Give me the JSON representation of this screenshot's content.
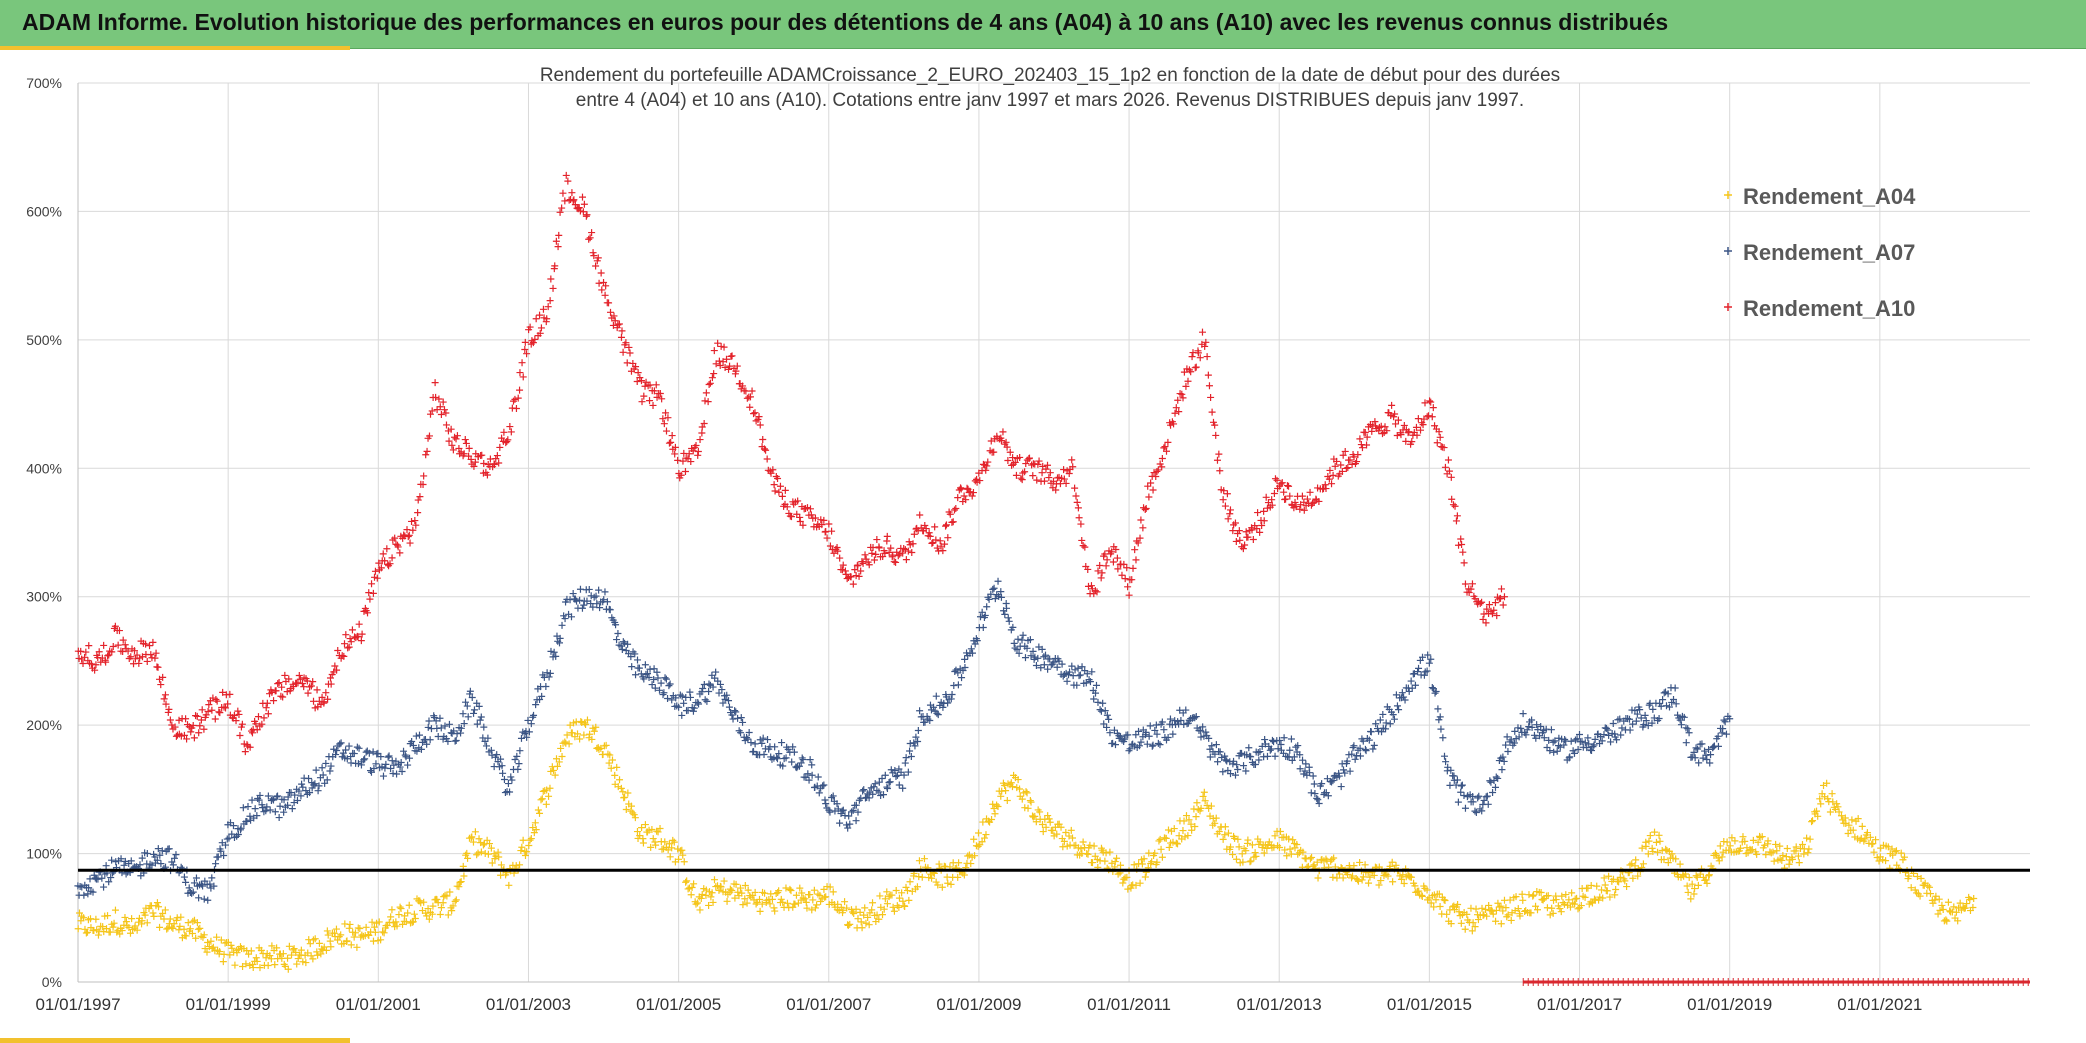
{
  "header": {
    "title": "ADAM Informe. Evolution historique des performances en euros pour des détentions de 4 ans (A04) à 10 ans (A10) avec les revenus connus distribués"
  },
  "colors": {
    "banner": "#79c67c",
    "accent": "#f2c12e",
    "A04": "#f5c51a",
    "A07": "#3b5585",
    "A10": "#e3232b",
    "reference_line": "#000000",
    "projection_band": "#d9282f"
  },
  "chart_data": {
    "type": "scatter",
    "title_lines": [
      "Rendement du portefeuille ADAMCroissance_2_EURO_202403_15_1p2  en fonction de la date de début pour des durées",
      "entre 4 (A04) et 10 ans (A10). Cotations entre janv 1997 et mars 2026. Revenus DISTRIBUES depuis janv 1997."
    ],
    "xlim": [
      1997.0,
      2023.0
    ],
    "ylim": [
      0,
      700
    ],
    "y_unit": "%",
    "y_ticks": [
      0,
      100,
      200,
      300,
      400,
      500,
      600,
      700
    ],
    "y_tick_labels": [
      "0%",
      "100%",
      "200%",
      "300%",
      "400%",
      "500%",
      "600%",
      "700%"
    ],
    "x_ticks": [
      1997,
      1999,
      2001,
      2003,
      2005,
      2007,
      2009,
      2011,
      2013,
      2015,
      2017,
      2019,
      2021
    ],
    "x_tick_labels": [
      "01/01/1997",
      "01/01/1999",
      "01/01/2001",
      "01/01/2003",
      "01/01/2005",
      "01/01/2007",
      "01/01/2009",
      "01/01/2011",
      "01/01/2013",
      "01/01/2015",
      "01/01/2017",
      "01/01/2019",
      "01/01/2021"
    ],
    "grid": true,
    "legend_position": "top-right",
    "reference_line_value": 87,
    "projection_band": {
      "x_start": 2016.25,
      "x_end": 2023.0,
      "y": 0
    },
    "marker": "+",
    "series": [
      {
        "name": "Rendement_A04",
        "x": [
          1997.0,
          1997.25,
          1997.5,
          1997.75,
          1998.0,
          1998.25,
          1998.5,
          1998.75,
          1999.0,
          1999.25,
          1999.5,
          1999.75,
          2000.0,
          2000.25,
          2000.5,
          2000.75,
          2001.0,
          2001.25,
          2001.5,
          2001.75,
          2002.0,
          2002.25,
          2002.5,
          2002.75,
          2003.0,
          2003.25,
          2003.5,
          2003.75,
          2004.0,
          2004.25,
          2004.5,
          2004.75,
          2005.0,
          2005.25,
          2005.5,
          2005.75,
          2006.0,
          2006.25,
          2006.5,
          2006.75,
          2007.0,
          2007.25,
          2007.5,
          2007.75,
          2008.0,
          2008.25,
          2008.5,
          2008.75,
          2009.0,
          2009.25,
          2009.5,
          2009.75,
          2010.0,
          2010.25,
          2010.5,
          2010.75,
          2011.0,
          2011.25,
          2011.5,
          2011.75,
          2012.0,
          2012.25,
          2012.5,
          2012.75,
          2013.0,
          2013.25,
          2013.5,
          2013.75,
          2014.0,
          2014.25,
          2014.5,
          2014.75,
          2015.0,
          2015.25,
          2015.5,
          2015.75,
          2016.0,
          2016.25,
          2016.5,
          2016.75,
          2017.0,
          2017.25,
          2017.5,
          2017.75,
          2018.0,
          2018.25,
          2018.5,
          2018.75,
          2019.0,
          2019.25,
          2019.5,
          2019.75,
          2020.0,
          2020.25,
          2020.5,
          2020.75,
          2021.0,
          2021.25,
          2021.5,
          2021.75,
          2022.0,
          2022.25
        ],
        "y": [
          45,
          42,
          48,
          40,
          55,
          45,
          42,
          30,
          22,
          18,
          20,
          18,
          22,
          30,
          38,
          35,
          40,
          52,
          56,
          58,
          62,
          110,
          100,
          82,
          110,
          150,
          190,
          200,
          185,
          150,
          115,
          112,
          100,
          60,
          72,
          70,
          65,
          62,
          66,
          64,
          68,
          52,
          50,
          62,
          65,
          90,
          82,
          85,
          110,
          145,
          155,
          130,
          118,
          110,
          100,
          95,
          80,
          90,
          110,
          120,
          140,
          115,
          100,
          105,
          110,
          100,
          88,
          90,
          85,
          82,
          85,
          80,
          70,
          55,
          48,
          50,
          55,
          60,
          62,
          58,
          66,
          72,
          75,
          90,
          110,
          90,
          70,
          90,
          108,
          108,
          105,
          95,
          100,
          150,
          125,
          118,
          100,
          95,
          75,
          60,
          50,
          65
        ]
      },
      {
        "name": "Rendement_A07",
        "x": [
          1997.0,
          1997.25,
          1997.5,
          1997.75,
          1998.0,
          1998.25,
          1998.5,
          1998.75,
          1999.0,
          1999.25,
          1999.5,
          1999.75,
          2000.0,
          2000.25,
          2000.5,
          2000.75,
          2001.0,
          2001.25,
          2001.5,
          2001.75,
          2002.0,
          2002.25,
          2002.5,
          2002.75,
          2003.0,
          2003.25,
          2003.5,
          2003.75,
          2004.0,
          2004.25,
          2004.5,
          2004.75,
          2005.0,
          2005.25,
          2005.5,
          2005.75,
          2006.0,
          2006.25,
          2006.5,
          2006.75,
          2007.0,
          2007.25,
          2007.5,
          2007.75,
          2008.0,
          2008.25,
          2008.5,
          2008.75,
          2009.0,
          2009.25,
          2009.5,
          2009.75,
          2010.0,
          2010.25,
          2010.5,
          2010.75,
          2011.0,
          2011.25,
          2011.5,
          2011.75,
          2012.0,
          2012.25,
          2012.5,
          2012.75,
          2013.0,
          2013.25,
          2013.5,
          2013.75,
          2014.0,
          2014.25,
          2014.5,
          2014.75,
          2015.0,
          2015.25,
          2015.5,
          2015.75,
          2016.0,
          2016.25,
          2016.5,
          2016.75,
          2017.0,
          2017.25,
          2017.5,
          2017.75,
          2018.0,
          2018.25,
          2018.5,
          2018.75,
          2019.0
        ],
        "y": [
          75,
          80,
          88,
          85,
          100,
          95,
          75,
          70,
          115,
          130,
          140,
          135,
          150,
          160,
          180,
          175,
          170,
          165,
          185,
          200,
          190,
          220,
          180,
          150,
          200,
          240,
          290,
          300,
          300,
          260,
          240,
          235,
          215,
          220,
          235,
          205,
          185,
          180,
          175,
          165,
          140,
          125,
          145,
          155,
          160,
          210,
          215,
          240,
          275,
          310,
          265,
          255,
          250,
          240,
          235,
          195,
          185,
          190,
          195,
          210,
          190,
          170,
          170,
          180,
          185,
          180,
          145,
          155,
          175,
          190,
          210,
          235,
          250,
          160,
          140,
          140,
          180,
          200,
          195,
          180,
          185,
          190,
          195,
          205,
          210,
          225,
          180,
          175,
          205
        ]
      },
      {
        "name": "Rendement_A10",
        "x": [
          1997.0,
          1997.25,
          1997.5,
          1997.75,
          1998.0,
          1998.25,
          1998.5,
          1998.75,
          1999.0,
          1999.25,
          1999.5,
          1999.75,
          2000.0,
          2000.25,
          2000.5,
          2000.75,
          2001.0,
          2001.25,
          2001.5,
          2001.75,
          2002.0,
          2002.25,
          2002.5,
          2002.75,
          2003.0,
          2003.25,
          2003.5,
          2003.75,
          2004.0,
          2004.25,
          2004.5,
          2004.75,
          2005.0,
          2005.25,
          2005.5,
          2005.75,
          2006.0,
          2006.25,
          2006.5,
          2006.75,
          2007.0,
          2007.25,
          2007.5,
          2007.75,
          2008.0,
          2008.25,
          2008.5,
          2008.75,
          2009.0,
          2009.25,
          2009.5,
          2009.75,
          2010.0,
          2010.25,
          2010.5,
          2010.75,
          2011.0,
          2011.25,
          2011.5,
          2011.75,
          2012.0,
          2012.25,
          2012.5,
          2012.75,
          2013.0,
          2013.25,
          2013.5,
          2013.75,
          2014.0,
          2014.25,
          2014.5,
          2014.75,
          2015.0,
          2015.25,
          2015.5,
          2015.75,
          2016.0
        ],
        "y": [
          260,
          248,
          268,
          255,
          260,
          200,
          195,
          210,
          220,
          185,
          215,
          230,
          235,
          215,
          260,
          270,
          320,
          340,
          355,
          460,
          420,
          410,
          400,
          430,
          500,
          520,
          620,
          600,
          540,
          500,
          460,
          455,
          400,
          410,
          490,
          480,
          450,
          390,
          370,
          360,
          350,
          310,
          330,
          340,
          330,
          360,
          340,
          380,
          390,
          430,
          400,
          400,
          390,
          400,
          300,
          340,
          310,
          380,
          420,
          470,
          500,
          380,
          340,
          360,
          390,
          370,
          380,
          400,
          410,
          430,
          440,
          420,
          450,
          400,
          310,
          285,
          300
        ]
      }
    ]
  }
}
